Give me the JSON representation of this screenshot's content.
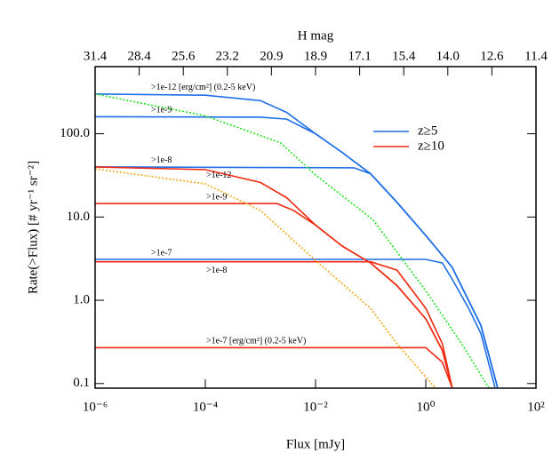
{
  "chart_data": {
    "type": "line",
    "xlabel": "Flux [mJy]",
    "ylabel": "Rate(>Flux) [# yr⁻¹ sr⁻²]",
    "x2label": "H mag",
    "log_x": true,
    "log_y": true,
    "xlim": [
      1e-06,
      100
    ],
    "ylim": [
      0.088,
      640
    ],
    "xticks": [
      {
        "value": 1e-06,
        "label": "10⁻⁶"
      },
      {
        "value": 0.0001,
        "label": "10⁻⁴"
      },
      {
        "value": 0.01,
        "label": "10⁻²"
      },
      {
        "value": 1,
        "label": "10⁰"
      },
      {
        "value": 100,
        "label": "10²"
      }
    ],
    "yticks": [
      0.1,
      {
        "value": 1,
        "label": "1.0"
      },
      {
        "value": 10,
        "label": "10.0"
      },
      {
        "value": 100,
        "label": "100.0"
      }
    ],
    "x2ticks": [
      {
        "value": 1e-06,
        "label": "31.4"
      },
      {
        "value": 6.31e-06,
        "label": "28.4"
      },
      {
        "value": 3.98e-05,
        "label": "25.6"
      },
      {
        "value": 0.000251,
        "label": "23.2"
      },
      {
        "value": 0.00158,
        "label": "20.9"
      },
      {
        "value": 0.01,
        "label": "18.9"
      },
      {
        "value": 0.0631,
        "label": "17.1"
      },
      {
        "value": 0.398,
        "label": "15.4"
      },
      {
        "value": 2.51,
        "label": "14.0"
      },
      {
        "value": 15.8,
        "label": "12.6"
      },
      {
        "value": 100,
        "label": "11.4"
      }
    ],
    "legend": [
      {
        "name": "z≥5",
        "color": "#1f6fe8"
      },
      {
        "name": "z≥10",
        "color": "#f02a10"
      }
    ],
    "series": [
      {
        "label": ">1e-12 [erg/cm²] (0.2-5 keV)",
        "color": "#1f6fe8",
        "dotted": false,
        "x": [
          1e-06,
          0.0001,
          0.001,
          0.003,
          0.01,
          0.03,
          0.1,
          0.3,
          1,
          3,
          10,
          20
        ],
        "values": [
          300,
          290,
          250,
          180,
          100,
          60,
          33,
          15,
          6,
          2.5,
          0.5,
          0.09
        ]
      },
      {
        "label": ">1e-9",
        "color": "#1f6fe8",
        "dotted": false,
        "x": [
          1e-06,
          0.001,
          0.003,
          0.01,
          0.03,
          0.1,
          0.3,
          1,
          3,
          10,
          20
        ],
        "values": [
          160,
          158,
          150,
          100,
          60,
          33,
          15,
          6,
          2.5,
          0.5,
          0.09
        ]
      },
      {
        "label": ">1e-8",
        "color": "#1f6fe8",
        "dotted": false,
        "x": [
          1e-06,
          0.05,
          0.1,
          0.3,
          1,
          3,
          10,
          20
        ],
        "values": [
          40,
          39,
          33,
          15,
          6,
          2.5,
          0.5,
          0.09
        ]
      },
      {
        "label": ">1e-7",
        "color": "#1f6fe8",
        "dotted": false,
        "x": [
          1e-06,
          1,
          2,
          3,
          6,
          10,
          18
        ],
        "values": [
          3.1,
          3.1,
          2.8,
          1.8,
          0.8,
          0.4,
          0.09
        ]
      },
      {
        "color": "#22e022",
        "dotted": true,
        "x": [
          1e-06,
          0.0001,
          0.0023,
          0.01,
          0.11,
          1,
          4.5,
          14
        ],
        "values": [
          300,
          164,
          78,
          32,
          9.3,
          1.3,
          0.3,
          0.088
        ]
      },
      {
        "label": ">1e-12",
        "color": "#f02a10",
        "dotted": false,
        "x": [
          1e-06,
          0.0001,
          0.001,
          0.003,
          0.01,
          0.03,
          0.1,
          0.3,
          1,
          2,
          3
        ],
        "values": [
          40,
          37,
          26,
          17,
          8,
          4.5,
          2.8,
          1.5,
          0.6,
          0.25,
          0.09
        ]
      },
      {
        "label": ">1e-9",
        "color": "#f02a10",
        "dotted": false,
        "x": [
          1e-06,
          0.002,
          0.004,
          0.01,
          0.03,
          0.1,
          0.3,
          1,
          2,
          3
        ],
        "values": [
          14.5,
          14.5,
          12,
          8,
          4.5,
          2.8,
          1.5,
          0.6,
          0.25,
          0.09
        ]
      },
      {
        "label": ">1e-8",
        "color": "#f02a10",
        "dotted": false,
        "x": [
          1e-06,
          0.1,
          0.3,
          1,
          2,
          3
        ],
        "values": [
          2.9,
          2.9,
          2.3,
          0.8,
          0.3,
          0.09
        ]
      },
      {
        "label": ">1e-7 [erg/cm²] (0.2-5 keV)",
        "color": "#f02a10",
        "dotted": false,
        "x": [
          1e-06,
          1,
          2,
          3
        ],
        "values": [
          0.27,
          0.27,
          0.18,
          0.09
        ]
      },
      {
        "color": "#f5a818",
        "dotted": true,
        "x": [
          1e-06,
          0.0001,
          0.001,
          0.01,
          0.1,
          0.3,
          1,
          1.5
        ],
        "values": [
          38,
          25,
          12,
          3,
          0.8,
          0.3,
          0.12,
          0.088
        ]
      }
    ]
  }
}
